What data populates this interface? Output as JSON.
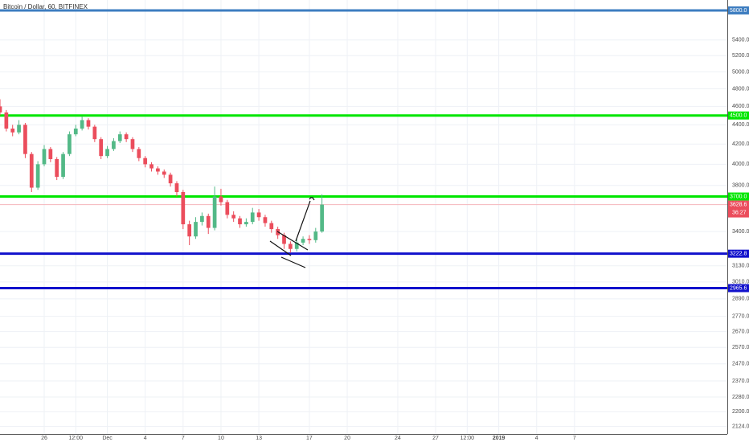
{
  "chart_data": {
    "type": "candlestick",
    "title": "Bitcoin / Dollar, 60, BITFINEX",
    "up_color": "#53b987",
    "down_color": "#eb4d5c",
    "log": true,
    "grid": true,
    "xlim": [
      22.5,
      80.1
    ],
    "ylim": [
      2085,
      5948
    ],
    "xticks": [
      26,
      {
        "value": 28.5,
        "label": "12:00"
      },
      {
        "value": 31,
        "label": "Dec"
      },
      {
        "value": 34,
        "label": "4"
      },
      {
        "value": 37,
        "label": "7"
      },
      {
        "value": 40,
        "label": "10"
      },
      {
        "value": 43,
        "label": "13"
      },
      {
        "value": 47,
        "label": "17"
      },
      {
        "value": 50,
        "label": "20"
      },
      {
        "value": 54,
        "label": "24"
      },
      {
        "value": 57,
        "label": "27"
      },
      {
        "value": 59.5,
        "label": "12:00"
      },
      {
        "value": 62,
        "label": "2019"
      },
      {
        "value": 65,
        "label": "4"
      },
      {
        "value": 68,
        "label": "7"
      }
    ],
    "yticks": [
      {
        "value": 5400,
        "label": "5400.0"
      },
      {
        "value": 5200,
        "label": "5200.0"
      },
      {
        "value": 5000,
        "label": "5000.0"
      },
      {
        "value": 4800,
        "label": "4800.0"
      },
      {
        "value": 4600,
        "label": "4600.0"
      },
      {
        "value": 4400,
        "label": "4400.0"
      },
      {
        "value": 4200,
        "label": "4200.0"
      },
      {
        "value": 4000,
        "label": "4000.0"
      },
      {
        "value": 3800,
        "label": "3800.0"
      },
      {
        "value": 3400,
        "label": "3400.0"
      },
      {
        "value": 3130,
        "label": "3130.0"
      },
      {
        "value": 3010,
        "label": "3010.0"
      },
      {
        "value": 2890,
        "label": "2890.0"
      },
      {
        "value": 2770,
        "label": "2770.0"
      },
      {
        "value": 2670,
        "label": "2670.0"
      },
      {
        "value": 2570,
        "label": "2570.0"
      },
      {
        "value": 2470,
        "label": "2470.0"
      },
      {
        "value": 2370,
        "label": "2370.0"
      },
      {
        "value": 2280,
        "label": "2280.0"
      },
      {
        "value": 2200,
        "label": "2200.0"
      },
      {
        "value": 2124,
        "label": "2124.0"
      }
    ],
    "levels": [
      {
        "value": 5800,
        "label": "5800.0",
        "color": "#3d7dc0"
      },
      {
        "value": 4500,
        "label": "4500.0",
        "color": "#00e600"
      },
      {
        "value": 3700,
        "label": "3700.0",
        "color": "#00e600"
      },
      {
        "value": 3222.8,
        "label": "3222.8",
        "color": "#1111cc"
      },
      {
        "value": 2965.6,
        "label": "2965.6",
        "color": "#1111cc"
      }
    ],
    "countdown": "36:27",
    "x": [
      22.5,
      23,
      23.5,
      24,
      24.5,
      25,
      25.5,
      26,
      26.5,
      27,
      27.5,
      28,
      28.5,
      29,
      29.5,
      30,
      30.5,
      31,
      31.5,
      32,
      32.5,
      33,
      33.5,
      34,
      34.5,
      35,
      35.5,
      36,
      36.5,
      37,
      37.5,
      38,
      38.5,
      39,
      39.5,
      40,
      40.5,
      41,
      41.5,
      42,
      42.5,
      43,
      43.5,
      44,
      44.5,
      45,
      45.5,
      46,
      46.5,
      47,
      47.5,
      48
    ],
    "open": [
      4600,
      4533,
      4360,
      4320,
      4400,
      4100,
      3780,
      4000,
      4150,
      4050,
      3880,
      4100,
      4300,
      4360,
      4450,
      4380,
      4250,
      4080,
      4150,
      4230,
      4300,
      4250,
      4150,
      4060,
      4000,
      3960,
      3930,
      3900,
      3820,
      3740,
      3460,
      3360,
      3480,
      3530,
      3430,
      3700,
      3650,
      3540,
      3510,
      3460,
      3480,
      3560,
      3520,
      3470,
      3420,
      3370,
      3300,
      3260,
      3310,
      3340,
      3330,
      3400
    ],
    "high": [
      4680,
      4560,
      4400,
      4450,
      4420,
      4120,
      4030,
      4190,
      4170,
      4070,
      4120,
      4330,
      4400,
      4490,
      4470,
      4400,
      4270,
      4180,
      4260,
      4330,
      4320,
      4270,
      4170,
      4080,
      4020,
      3980,
      3950,
      3920,
      3840,
      3760,
      3490,
      3520,
      3560,
      3550,
      3790,
      3770,
      3670,
      3570,
      3530,
      3510,
      3600,
      3590,
      3540,
      3490,
      3440,
      3390,
      3320,
      3340,
      3360,
      3370,
      3430,
      3720
    ],
    "low": [
      4500,
      4330,
      4280,
      4300,
      4060,
      3740,
      3760,
      3980,
      4020,
      3850,
      3860,
      4080,
      4280,
      4340,
      4350,
      4220,
      4050,
      4060,
      4130,
      4210,
      4220,
      4120,
      4030,
      3970,
      3930,
      3900,
      3870,
      3790,
      3700,
      3420,
      3290,
      3340,
      3450,
      3380,
      3410,
      3620,
      3510,
      3480,
      3430,
      3440,
      3460,
      3490,
      3440,
      3390,
      3340,
      3260,
      3230,
      3240,
      3290,
      3300,
      3310,
      3390
    ],
    "close": [
      4533,
      4360,
      4320,
      4400,
      4100,
      3780,
      4000,
      4150,
      4050,
      3880,
      4100,
      4300,
      4360,
      4450,
      4380,
      4250,
      4080,
      4150,
      4230,
      4300,
      4250,
      4150,
      4060,
      4000,
      3960,
      3930,
      3900,
      3820,
      3740,
      3460,
      3360,
      3480,
      3530,
      3430,
      3700,
      3650,
      3540,
      3510,
      3460,
      3480,
      3560,
      3520,
      3470,
      3420,
      3370,
      3300,
      3260,
      3310,
      3340,
      3330,
      3400,
      3628.6
    ]
  }
}
